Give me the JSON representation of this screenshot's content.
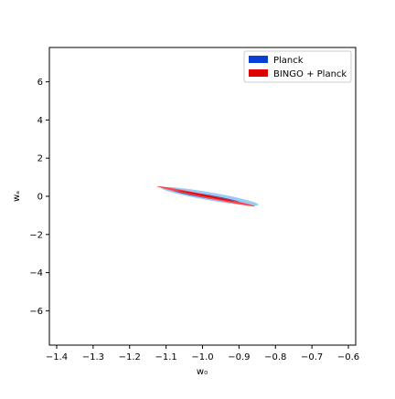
{
  "chart_data": {
    "type": "contour",
    "title": "",
    "xlabel": "w₀",
    "ylabel": "wₐ",
    "xlim": [
      -1.42,
      -0.58
    ],
    "ylim": [
      -7.8,
      7.8
    ],
    "xticks": [
      -1.4,
      -1.3,
      -1.2,
      -1.1,
      -1.0,
      -0.9,
      -0.8,
      -0.7,
      -0.6
    ],
    "xtick_labels": [
      "−1.4",
      "−1.3",
      "−1.2",
      "−1.1",
      "−1.0",
      "−0.9",
      "−0.8",
      "−0.7",
      "−0.6"
    ],
    "yticks": [
      -6,
      -4,
      -2,
      0,
      2,
      4,
      6
    ],
    "ytick_labels": [
      "−6",
      "−4",
      "−2",
      "0",
      "2",
      "4",
      "6"
    ],
    "grid": false,
    "legend": {
      "position": "upper right",
      "entries": [
        {
          "label": "Planck",
          "color": "#0a3fd6"
        },
        {
          "label": "BINGO + Planck",
          "color": "#e00000"
        }
      ]
    },
    "series": [
      {
        "name": "Planck",
        "contours": [
          {
            "level": "2σ",
            "color": "#99ccf5",
            "center": [
              -0.98,
              0.0
            ],
            "slope": -4.0,
            "major_half_width": 0.5,
            "minor_half_width": 0.95
          },
          {
            "level": "1σ",
            "color": "#0a3fd6",
            "center": [
              -0.99,
              0.0
            ],
            "slope": -3.7,
            "major_half_width": 0.34,
            "minor_half_width": 0.45
          }
        ]
      },
      {
        "name": "BINGO + Planck",
        "contours": [
          {
            "level": "2σ",
            "color": "#ff4747",
            "center": [
              -0.99,
              0.0
            ],
            "slope": -4.0,
            "major_half_width": 0.55,
            "minor_half_width": 0.36
          },
          {
            "level": "1σ",
            "color": "#e00000",
            "center": [
              -0.99,
              0.02
            ],
            "slope": -3.8,
            "major_half_width": 0.3,
            "minor_half_width": 0.17
          }
        ]
      }
    ]
  }
}
